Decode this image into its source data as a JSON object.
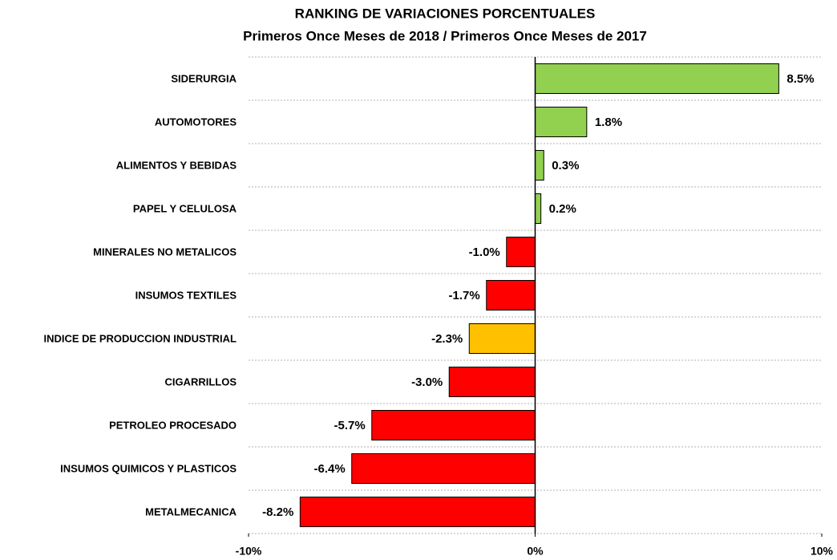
{
  "chart_data": {
    "type": "barh",
    "title": "RANKING DE VARIACIONES PORCENTUALES",
    "subtitle": "Primeros Once Meses de 2018 / Primeros Once Meses de 2017",
    "categories": [
      "SIDERURGIA",
      "AUTOMOTORES",
      "ALIMENTOS Y BEBIDAS",
      "PAPEL Y CELULOSA",
      "MINERALES NO METALICOS",
      "INSUMOS TEXTILES",
      "INDICE DE PRODUCCION INDUSTRIAL",
      "CIGARRILLOS",
      "PETROLEO PROCESADO",
      "INSUMOS QUIMICOS Y PLASTICOS",
      "METALMECANICA"
    ],
    "values": [
      8.5,
      1.8,
      0.3,
      0.2,
      -1.0,
      -1.7,
      -2.3,
      -3.0,
      -5.7,
      -6.4,
      -8.2
    ],
    "value_labels": [
      "8.5%",
      "1.8%",
      "0.3%",
      "0.2%",
      "-1.0%",
      "-1.7%",
      "-2.3%",
      "-3.0%",
      "-5.7%",
      "-6.4%",
      "-8.2%"
    ],
    "colors": [
      "#92d050",
      "#92d050",
      "#92d050",
      "#92d050",
      "#ff0000",
      "#ff0000",
      "#ffc000",
      "#ff0000",
      "#ff0000",
      "#ff0000",
      "#ff0000"
    ],
    "xlim": [
      -10,
      10
    ],
    "xticks": [
      {
        "value": -10,
        "label": "-10%"
      },
      {
        "value": 0,
        "label": "0%"
      },
      {
        "value": 10,
        "label": "10%"
      }
    ]
  }
}
